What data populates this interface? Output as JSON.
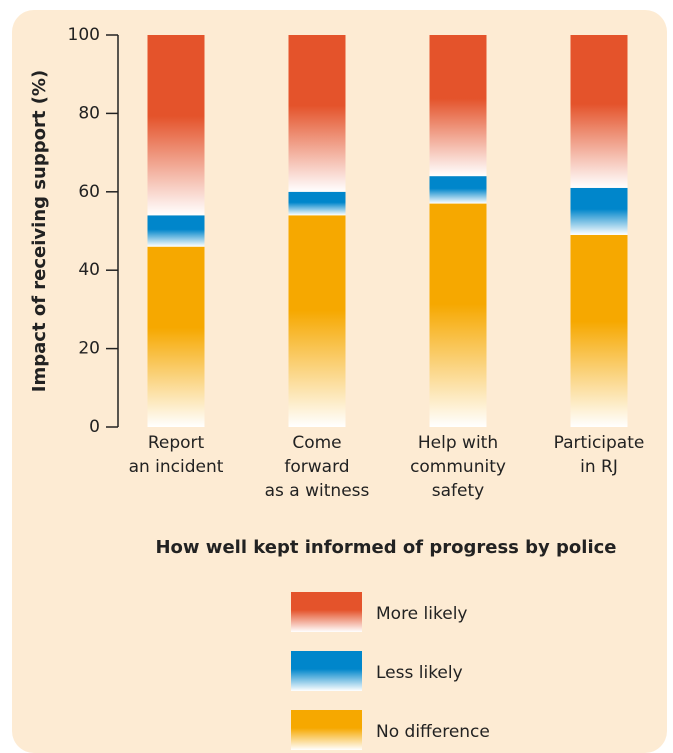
{
  "chart_data": {
    "type": "stacked_bar",
    "x_label": "How well kept informed of progress by police",
    "y_label": "Impact of receiving support (%)",
    "categories": [
      [
        "Report",
        "an incident"
      ],
      [
        "Come",
        "forward",
        "as a witness"
      ],
      [
        "Help with",
        "community",
        "safety"
      ],
      [
        "Participate",
        "in RJ"
      ]
    ],
    "series": [
      {
        "name": "No difference",
        "color": "#f6a800",
        "values": [
          46,
          54,
          57,
          49
        ]
      },
      {
        "name": "Less likely",
        "color": "#0086cb",
        "values": [
          8,
          6,
          7,
          12
        ]
      },
      {
        "name": "More likely",
        "color": "#e4532b",
        "values": [
          46,
          40,
          36,
          39
        ]
      }
    ],
    "ylim": [
      0,
      100
    ],
    "yticks": [
      0,
      20,
      40,
      60,
      80,
      100
    ]
  }
}
